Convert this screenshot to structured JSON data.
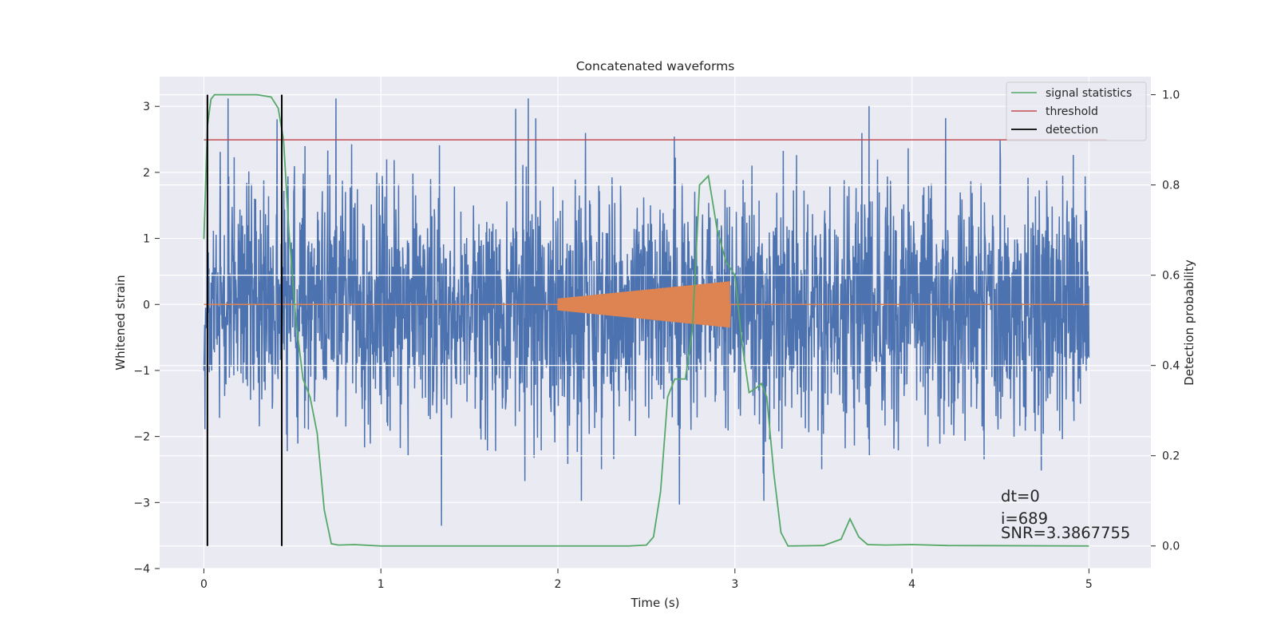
{
  "chart_data": {
    "type": "line",
    "title": "Concatenated waveforms",
    "xlabel": "Time (s)",
    "ylabel": "Whitened strain",
    "y2label": "Detection probability",
    "xlim": [
      -0.25,
      5.35
    ],
    "ylim": [
      -4.0,
      3.45
    ],
    "y2lim": [
      -0.05,
      1.04
    ],
    "grid": true,
    "legend_position": "top-right",
    "x_ticks": [
      0,
      1,
      2,
      3,
      4,
      5
    ],
    "y_ticks": [
      -4,
      -3,
      -2,
      -1,
      0,
      1,
      2,
      3
    ],
    "y2_ticks": [
      0.0,
      0.2,
      0.4,
      0.6,
      0.8,
      1.0
    ],
    "x_tick_labels": [
      "0",
      "1",
      "2",
      "3",
      "4",
      "5"
    ],
    "y_tick_labels": [
      "−4",
      "−3",
      "−2",
      "−1",
      "0",
      "1",
      "2",
      "3"
    ],
    "y2_tick_labels": [
      "0.0",
      "0.2",
      "0.4",
      "0.6",
      "0.8",
      "1.0"
    ],
    "series": [
      {
        "kind": "noise",
        "color": "#4c72b0",
        "x_range": [
          0,
          5
        ],
        "y_min": -3.66,
        "y_max": 3.12
      },
      {
        "kind": "chirp",
        "color": "#dd8452",
        "x": [
          0,
          2.0,
          2.97,
          2.975,
          5.0
        ],
        "y_amplitude": [
          0,
          0.09,
          0.35,
          0,
          0
        ]
      },
      {
        "name": "signal statistics",
        "axis": "right",
        "color": "#55a868",
        "x": [
          0,
          0.02,
          0.04,
          0.06,
          0.1,
          0.2,
          0.3,
          0.38,
          0.42,
          0.45,
          0.48,
          0.52,
          0.56,
          0.6,
          0.64,
          0.68,
          0.72,
          0.76,
          0.85,
          1.0,
          2.0,
          2.4,
          2.5,
          2.54,
          2.58,
          2.62,
          2.66,
          2.72,
          2.76,
          2.8,
          2.85,
          2.9,
          2.95,
          3.0,
          3.04,
          3.08,
          3.12,
          3.15,
          3.18,
          3.22,
          3.26,
          3.3,
          3.5,
          3.6,
          3.65,
          3.7,
          3.75,
          3.85,
          4.0,
          4.2,
          5.0
        ],
        "y": [
          0.68,
          0.93,
          0.99,
          1.0,
          1.0,
          1.0,
          1.0,
          0.995,
          0.97,
          0.9,
          0.7,
          0.5,
          0.37,
          0.33,
          0.25,
          0.08,
          0.005,
          0.002,
          0.003,
          0.0,
          0.0,
          0.0,
          0.002,
          0.02,
          0.12,
          0.33,
          0.37,
          0.37,
          0.48,
          0.8,
          0.82,
          0.7,
          0.63,
          0.6,
          0.45,
          0.34,
          0.35,
          0.36,
          0.33,
          0.16,
          0.03,
          0.0,
          0.001,
          0.015,
          0.06,
          0.02,
          0.003,
          0.002,
          0.003,
          0.001,
          0.0
        ]
      },
      {
        "name": "threshold",
        "axis": "right",
        "color": "#c44e52",
        "x": [
          0,
          5.1
        ],
        "y": [
          0.9,
          0.9
        ]
      },
      {
        "name": "detection",
        "axis": "right",
        "color": "#000000",
        "x": [
          0.02,
          0.44
        ],
        "y_range": [
          0.0,
          1.0
        ]
      }
    ],
    "annotations": [
      "dt=0",
      "i=689",
      "SNR=3.3867755"
    ]
  }
}
